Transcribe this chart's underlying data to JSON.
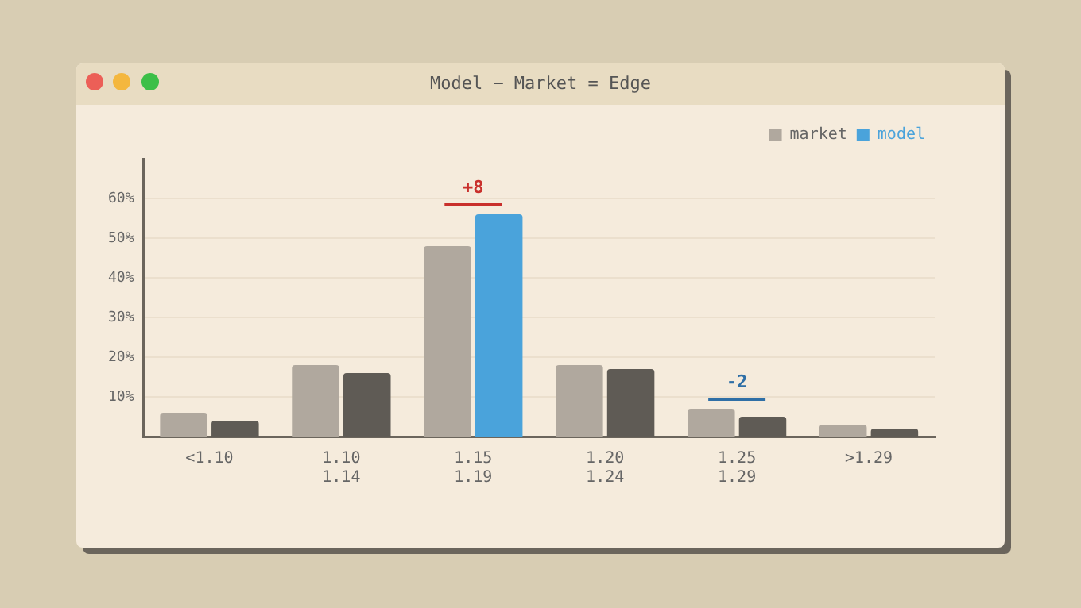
{
  "chart_data": {
    "type": "bar",
    "title": "Model − Market = Edge",
    "categories": [
      "<1.10",
      "1.10\n1.14",
      "1.15\n1.19",
      "1.20\n1.24",
      "1.25\n1.29",
      ">1.29"
    ],
    "series": [
      {
        "name": "market",
        "color": "#b0a89e",
        "values": [
          6,
          18,
          48,
          18,
          7,
          3
        ]
      },
      {
        "name": "model",
        "color": "#4aa3db",
        "colors": [
          "#5f5b55",
          "#5f5b55",
          "#4aa3db",
          "#5f5b55",
          "#5f5b55",
          "#5f5b55"
        ],
        "values": [
          4,
          16,
          56,
          17,
          5,
          2
        ]
      }
    ],
    "ylim": [
      0,
      70
    ],
    "yticks": [
      {
        "value": 10,
        "label": "10%"
      },
      {
        "value": 20,
        "label": "20%"
      },
      {
        "value": 30,
        "label": "30%"
      },
      {
        "value": 40,
        "label": "40%"
      },
      {
        "value": 50,
        "label": "50%"
      },
      {
        "value": 60,
        "label": "60%"
      }
    ],
    "annotations": [
      {
        "text": "+8",
        "x": "1.15\n1.19",
        "y": 56
      },
      {
        "text": "-2",
        "x": "1.25\n1.29",
        "y": 7
      }
    ],
    "grid": "y",
    "legend": "top right"
  }
}
